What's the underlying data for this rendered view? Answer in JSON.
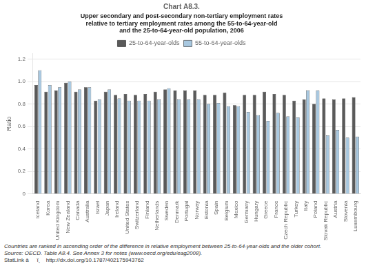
{
  "chart_data": {
    "type": "bar",
    "title": "Chart A8.3.",
    "subtitle": "Upper secondary and post-secondary non-tertiary employment rates\nrelative to tertiary employment rates among the 55-to-64-year-old\nand the 25-to-64-year-old population, 2006",
    "ylabel": "Ratio",
    "categories": [
      "Iceland",
      "Korea",
      "United Kingdom",
      "New Zealand",
      "Canada",
      "Australia",
      "Israel",
      "Japan",
      "Ireland",
      "United States",
      "Switzerland",
      "Finland",
      "Netherlands",
      "Sweden",
      "Denmark",
      "Portugal",
      "Norway",
      "Estonia",
      "Spain",
      "Belgium",
      "Mexico",
      "Germany",
      "Hungary",
      "Greece",
      "France",
      "Czech Republic",
      "Turkey",
      "Italy",
      "Poland",
      "Slovak Republic",
      "Austria",
      "Slovenia",
      "Luxembourg"
    ],
    "series": [
      {
        "name": "25-to-64-year-olds",
        "color": "#5a5a5a",
        "values": [
          0.97,
          0.91,
          0.92,
          0.99,
          0.91,
          0.95,
          0.83,
          0.91,
          0.88,
          0.89,
          0.88,
          0.89,
          0.91,
          0.93,
          0.92,
          0.92,
          0.92,
          0.88,
          0.88,
          0.9,
          0.79,
          0.88,
          0.88,
          0.91,
          0.89,
          0.88,
          0.83,
          0.84,
          0.8,
          0.85,
          0.84,
          0.85,
          0.86
        ]
      },
      {
        "name": "55-to-64-year-olds",
        "color": "#a8c8e0",
        "values": [
          1.1,
          0.97,
          0.95,
          1.0,
          0.93,
          0.95,
          0.84,
          0.93,
          0.85,
          0.83,
          0.83,
          0.83,
          0.84,
          0.94,
          0.84,
          0.84,
          0.84,
          0.8,
          0.81,
          0.78,
          0.78,
          0.73,
          0.7,
          0.65,
          0.72,
          0.69,
          0.68,
          0.92,
          0.92,
          0.52,
          0.57,
          0.5,
          0.51
        ]
      }
    ],
    "ylim": [
      0,
      1.25
    ],
    "yticks": [
      0,
      0.2,
      0.4,
      0.6,
      0.8,
      {
        "value": 1.0,
        "label": "1.0"
      },
      1.2
    ],
    "grid": true,
    "legend": "top",
    "annotations": [
      "Countries are ranked in ascending order of the difference in relative employment between 25-to-64-year-olds and the older cohort.",
      "Source: OECD. Table A8.4. See Annex 3 for notes (www.oecd.org/edu/eag2008).",
      "StatLink âï¸  http://dx.doi.org/10.1787/402175943762"
    ]
  }
}
